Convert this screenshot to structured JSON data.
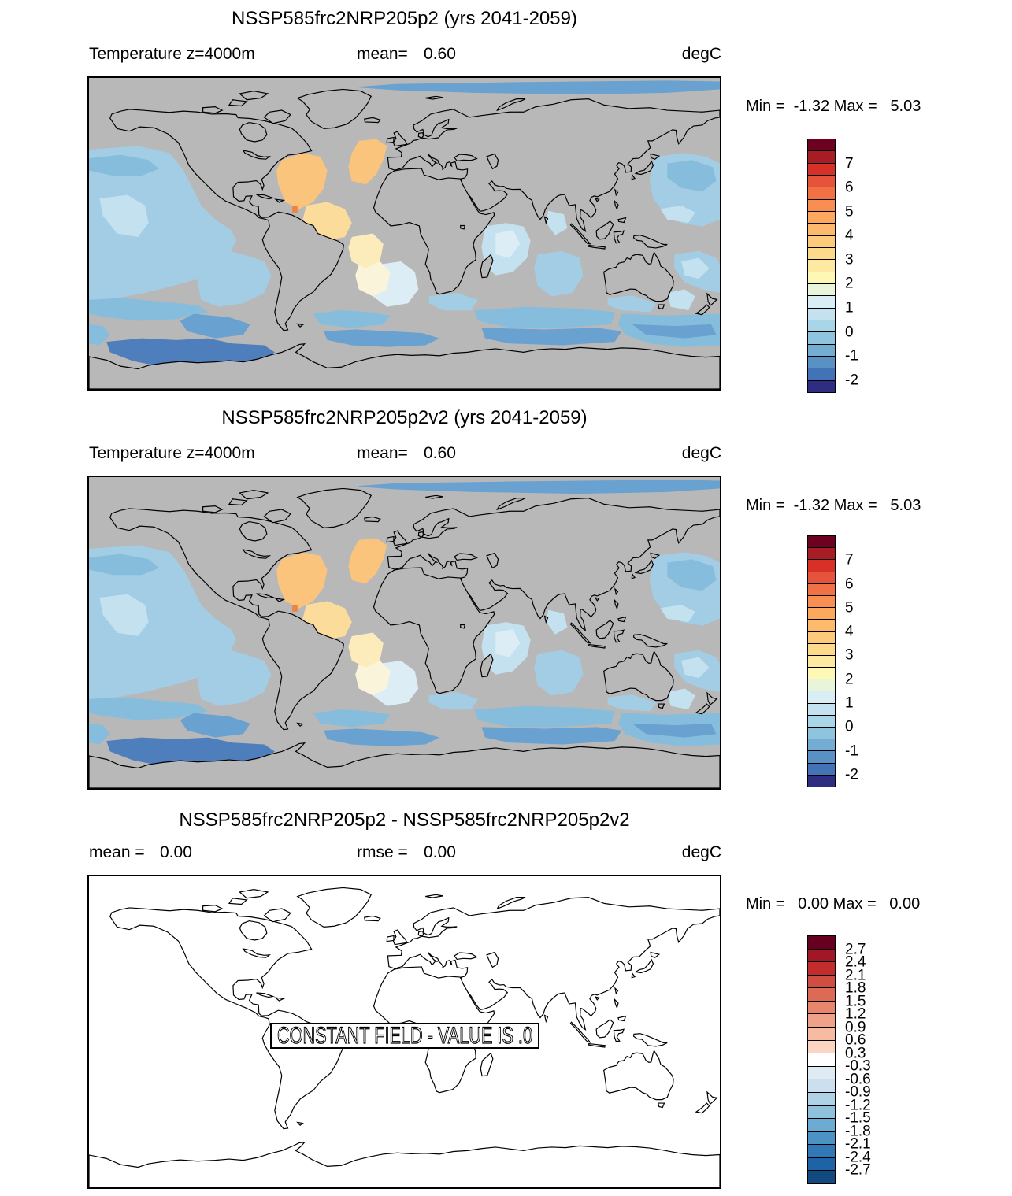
{
  "page": {
    "background": "#ffffff"
  },
  "palette": {
    "mapgray": "#b8b8b8",
    "or": "#fbc47d",
    "lor": "#fcdc9b",
    "py": "#fcecbb",
    "cr": "#faf4da",
    "dor": "#ee8444",
    "plb": "#dcedf6",
    "vlb": "#c4e1ef",
    "lb": "#a2cde5",
    "mb": "#86bddc",
    "b": "#69a1d0",
    "db": "#4e7ebc"
  },
  "panels": [
    {
      "title": "NSSP585frc2NRP205p2 (yrs 2041-2059)",
      "slotA_label": "Temperature z=4000m",
      "slotA_value": "",
      "slotB_label": "mean=",
      "slotB_value": "0.60",
      "unit": "degC",
      "minmax": "Min =  -1.32 Max =   5.03"
    },
    {
      "title": "NSSP585frc2NRP205p2v2 (yrs 2041-2059)",
      "slotA_label": "Temperature z=4000m",
      "slotA_value": "",
      "slotB_label": "mean=",
      "slotB_value": "0.60",
      "unit": "degC",
      "minmax": "Min =  -1.32 Max =   5.03"
    },
    {
      "title": "NSSP585frc2NRP205p2 - NSSP585frc2NRP205p2v2",
      "slotA_label": "mean =",
      "slotA_value": "0.00",
      "slotB_label": "rmse =",
      "slotB_value": "0.00",
      "unit": "degC",
      "minmax": "Min =   0.00 Max =   0.00",
      "overlay_text": "CONSTANT FIELD - VALUE IS .0"
    }
  ],
  "colorbars": [
    {
      "colors": [
        "#6d0220",
        "#a81d24",
        "#d73027",
        "#e5533a",
        "#f17044",
        "#f98e52",
        "#fda85f",
        "#fdba6c",
        "#fdca7b",
        "#fdd98b",
        "#fee9a2",
        "#fdf9b4",
        "#e9f5da",
        "#d9edf5",
        "#c3e1ee",
        "#a8d5e8",
        "#8fc4de",
        "#73aed2",
        "#5a91c5",
        "#4173b6",
        "#2e2d82"
      ],
      "labels": [
        {
          "t": "7",
          "b": 2
        },
        {
          "t": "6",
          "b": 4
        },
        {
          "t": "5",
          "b": 6
        },
        {
          "t": "4",
          "b": 8
        },
        {
          "t": "3",
          "b": 10
        },
        {
          "t": "2",
          "b": 12
        },
        {
          "t": "1",
          "b": 14
        },
        {
          "t": "0",
          "b": 16
        },
        {
          "t": "-1",
          "b": 18
        },
        {
          "t": "-2",
          "b": 20
        }
      ]
    },
    {
      "colors": [
        "#67001f",
        "#a11728",
        "#c22c2c",
        "#cf4d41",
        "#dc6a55",
        "#e8866d",
        "#f0a288",
        "#f7bba2",
        "#fbd5c2",
        "#ffffff",
        "#dfebf3",
        "#cbdfee",
        "#b0d2e7",
        "#8fc1dd",
        "#6cacd2",
        "#4c93c5",
        "#3079b6",
        "#1e63a5",
        "#114a7f"
      ],
      "labels": [
        {
          "t": "2.7",
          "b": 1
        },
        {
          "t": "2.4",
          "b": 2
        },
        {
          "t": "2.1",
          "b": 3
        },
        {
          "t": "1.8",
          "b": 4
        },
        {
          "t": "1.5",
          "b": 5
        },
        {
          "t": "1.2",
          "b": 6
        },
        {
          "t": "0.9",
          "b": 7
        },
        {
          "t": "0.6",
          "b": 8
        },
        {
          "t": "0.3",
          "b": 9
        },
        {
          "t": "-0.3",
          "b": 10
        },
        {
          "t": "-0.6",
          "b": 11
        },
        {
          "t": "-0.9",
          "b": 12
        },
        {
          "t": "-1.2",
          "b": 13
        },
        {
          "t": "-1.5",
          "b": 14
        },
        {
          "t": "-1.8",
          "b": 15
        },
        {
          "t": "-2.1",
          "b": 16
        },
        {
          "t": "-2.4",
          "b": 17
        },
        {
          "t": "-2.7",
          "b": 18
        }
      ]
    }
  ],
  "chart_data": [
    {
      "type": "heatmap",
      "title": "NSSP585frc2NRP205p2 (yrs 2041-2059)",
      "subtitle": "Temperature z=4000m",
      "units": "degC",
      "mean": 0.6,
      "min": -1.32,
      "max": 5.03,
      "projection": "global lat-lon map, filled contours over deep ocean, gray = land / no data",
      "colorbar_ticks": [
        7,
        6,
        5,
        4,
        3,
        2,
        1,
        0,
        -1,
        -2
      ],
      "colorbar_range": [
        -2.5,
        8
      ],
      "colorbar_step": 0.5,
      "features": "positive anomaly (2-4 degC, orange) in North Atlantic; weak negative anomaly (0 to -2 degC, blues) in Pacific, Indian and Southern Oceans; strongest negative band near 60S Atlantic sector and Arctic margin"
    },
    {
      "type": "heatmap",
      "title": "NSSP585frc2NRP205p2v2 (yrs 2041-2059)",
      "subtitle": "Temperature z=4000m",
      "units": "degC",
      "mean": 0.6,
      "min": -1.32,
      "max": 5.03,
      "projection": "global lat-lon map, filled contours over deep ocean, gray = land / no data",
      "colorbar_ticks": [
        7,
        6,
        5,
        4,
        3,
        2,
        1,
        0,
        -1,
        -2
      ],
      "colorbar_range": [
        -2.5,
        8
      ],
      "colorbar_step": 0.5,
      "features": "identical field to panel 1"
    },
    {
      "type": "heatmap",
      "title": "NSSP585frc2NRP205p2 - NSSP585frc2NRP205p2v2",
      "units": "degC",
      "mean": 0.0,
      "rmse": 0.0,
      "min": 0.0,
      "max": 0.0,
      "projection": "global lat-lon coastline map, no fill",
      "annotation": "CONSTANT FIELD - VALUE IS .0",
      "colorbar_ticks": [
        2.7,
        2.4,
        2.1,
        1.8,
        1.5,
        1.2,
        0.9,
        0.6,
        0.3,
        -0.3,
        -0.6,
        -0.9,
        -1.2,
        -1.5,
        -1.8,
        -2.1,
        -2.4,
        -2.7
      ],
      "colorbar_range": [
        -3.0,
        3.0
      ]
    }
  ]
}
